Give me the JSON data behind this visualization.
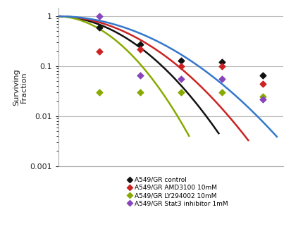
{
  "ylabel": "Surviving\nFraction",
  "background_color": "#ffffff",
  "grid_color": "#bbbbbb",
  "xlim": [
    0,
    11
  ],
  "ylim_min": 0.001,
  "ylim_max": 1.5,
  "curve_params": [
    {
      "alpha": 0.02,
      "beta": 0.085,
      "color": "#111111",
      "x_end": 7.85
    },
    {
      "alpha": 0.01,
      "beta": 0.065,
      "color": "#cc2222",
      "x_end": 9.3
    },
    {
      "alpha": 0.03,
      "beta": 0.13,
      "color": "#88aa00",
      "x_end": 6.4
    },
    {
      "alpha": 0.005,
      "beta": 0.048,
      "color": "#3377cc",
      "x_end": 10.7
    }
  ],
  "scatter_data": [
    {
      "x": [
        2,
        4,
        6,
        8,
        10
      ],
      "y": [
        0.6,
        0.27,
        0.13,
        0.12,
        0.065
      ],
      "color": "#111111"
    },
    {
      "x": [
        2,
        4,
        6,
        8,
        10
      ],
      "y": [
        0.2,
        0.22,
        0.1,
        0.1,
        0.045
      ],
      "color": "#cc2222"
    },
    {
      "x": [
        2,
        4,
        6,
        8,
        10
      ],
      "y": [
        0.03,
        0.03,
        0.03,
        0.03,
        0.025
      ],
      "color": "#88aa00"
    },
    {
      "x": [
        2,
        4,
        6,
        8,
        10
      ],
      "y": [
        1.0,
        0.065,
        0.055,
        0.055,
        0.022
      ],
      "color": "#8844bb"
    }
  ],
  "labels": [
    "A549/GR control",
    "A549/GR AMD3100 10mM",
    "A549/GR LY294002 10mM",
    "A549/GR Stat3 inhibitor 1mM"
  ],
  "legend_marker_colors": [
    "#111111",
    "#cc2222",
    "#88aa00",
    "#8844bb"
  ]
}
